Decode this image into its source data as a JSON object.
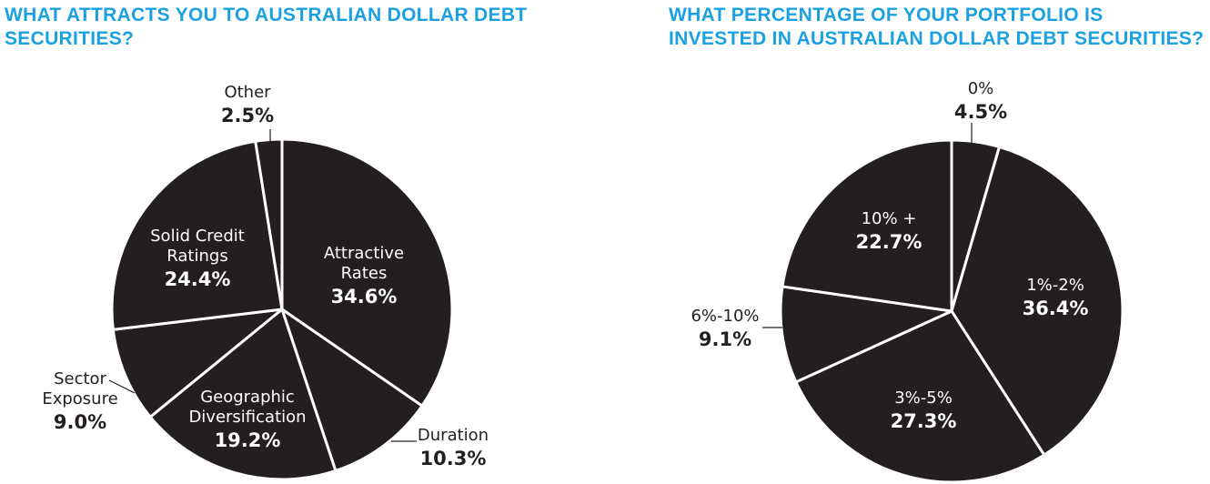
{
  "chart_data": [
    {
      "type": "pie",
      "title": "WHAT ATTRACTS YOU TO AUSTRALIAN DOLLAR DEBT SECURITIES?",
      "categories": [
        "Attractive Rates",
        "Duration",
        "Geographic Diversification",
        "Sector Exposure",
        "Solid Credit Ratings",
        "Other"
      ],
      "values": [
        34.6,
        10.3,
        19.2,
        9.0,
        24.4,
        2.5
      ],
      "value_labels": [
        "34.6%",
        "10.3%",
        "19.2%",
        "9.0%",
        "24.4%",
        "2.5%"
      ],
      "color": "#231f20"
    },
    {
      "type": "pie",
      "title": "WHAT PERCENTAGE OF YOUR PORTFOLIO IS INVESTED IN AUSTRALIAN DOLLAR DEBT SECURITIES?",
      "categories": [
        "0%",
        "1%-2%",
        "3%-5%",
        "6%-10%",
        "10% +"
      ],
      "values": [
        4.5,
        36.4,
        27.3,
        9.1,
        22.7
      ],
      "value_labels": [
        "4.5%",
        "36.4%",
        "27.3%",
        "9.1%",
        "22.7%"
      ],
      "color": "#231f20"
    }
  ]
}
